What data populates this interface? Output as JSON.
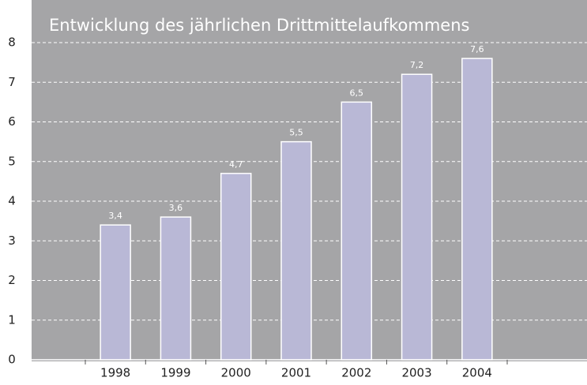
{
  "chart_data": {
    "type": "bar",
    "title": "Entwicklung des jährlichen Drittmittelaufkommens",
    "categories": [
      "1998",
      "1999",
      "2000",
      "2001",
      "2002",
      "2003",
      "2004"
    ],
    "values": [
      3.4,
      3.6,
      4.7,
      5.5,
      6.5,
      7.2,
      7.6
    ],
    "value_labels": [
      "3,4",
      "3,6",
      "4,7",
      "5,5",
      "6,5",
      "7,2",
      "7,6"
    ],
    "color": "#b9b8d6",
    "ylim": [
      0,
      8
    ],
    "yticks": [
      0,
      1,
      2,
      3,
      4,
      5,
      6,
      7,
      8
    ],
    "grid": true
  }
}
